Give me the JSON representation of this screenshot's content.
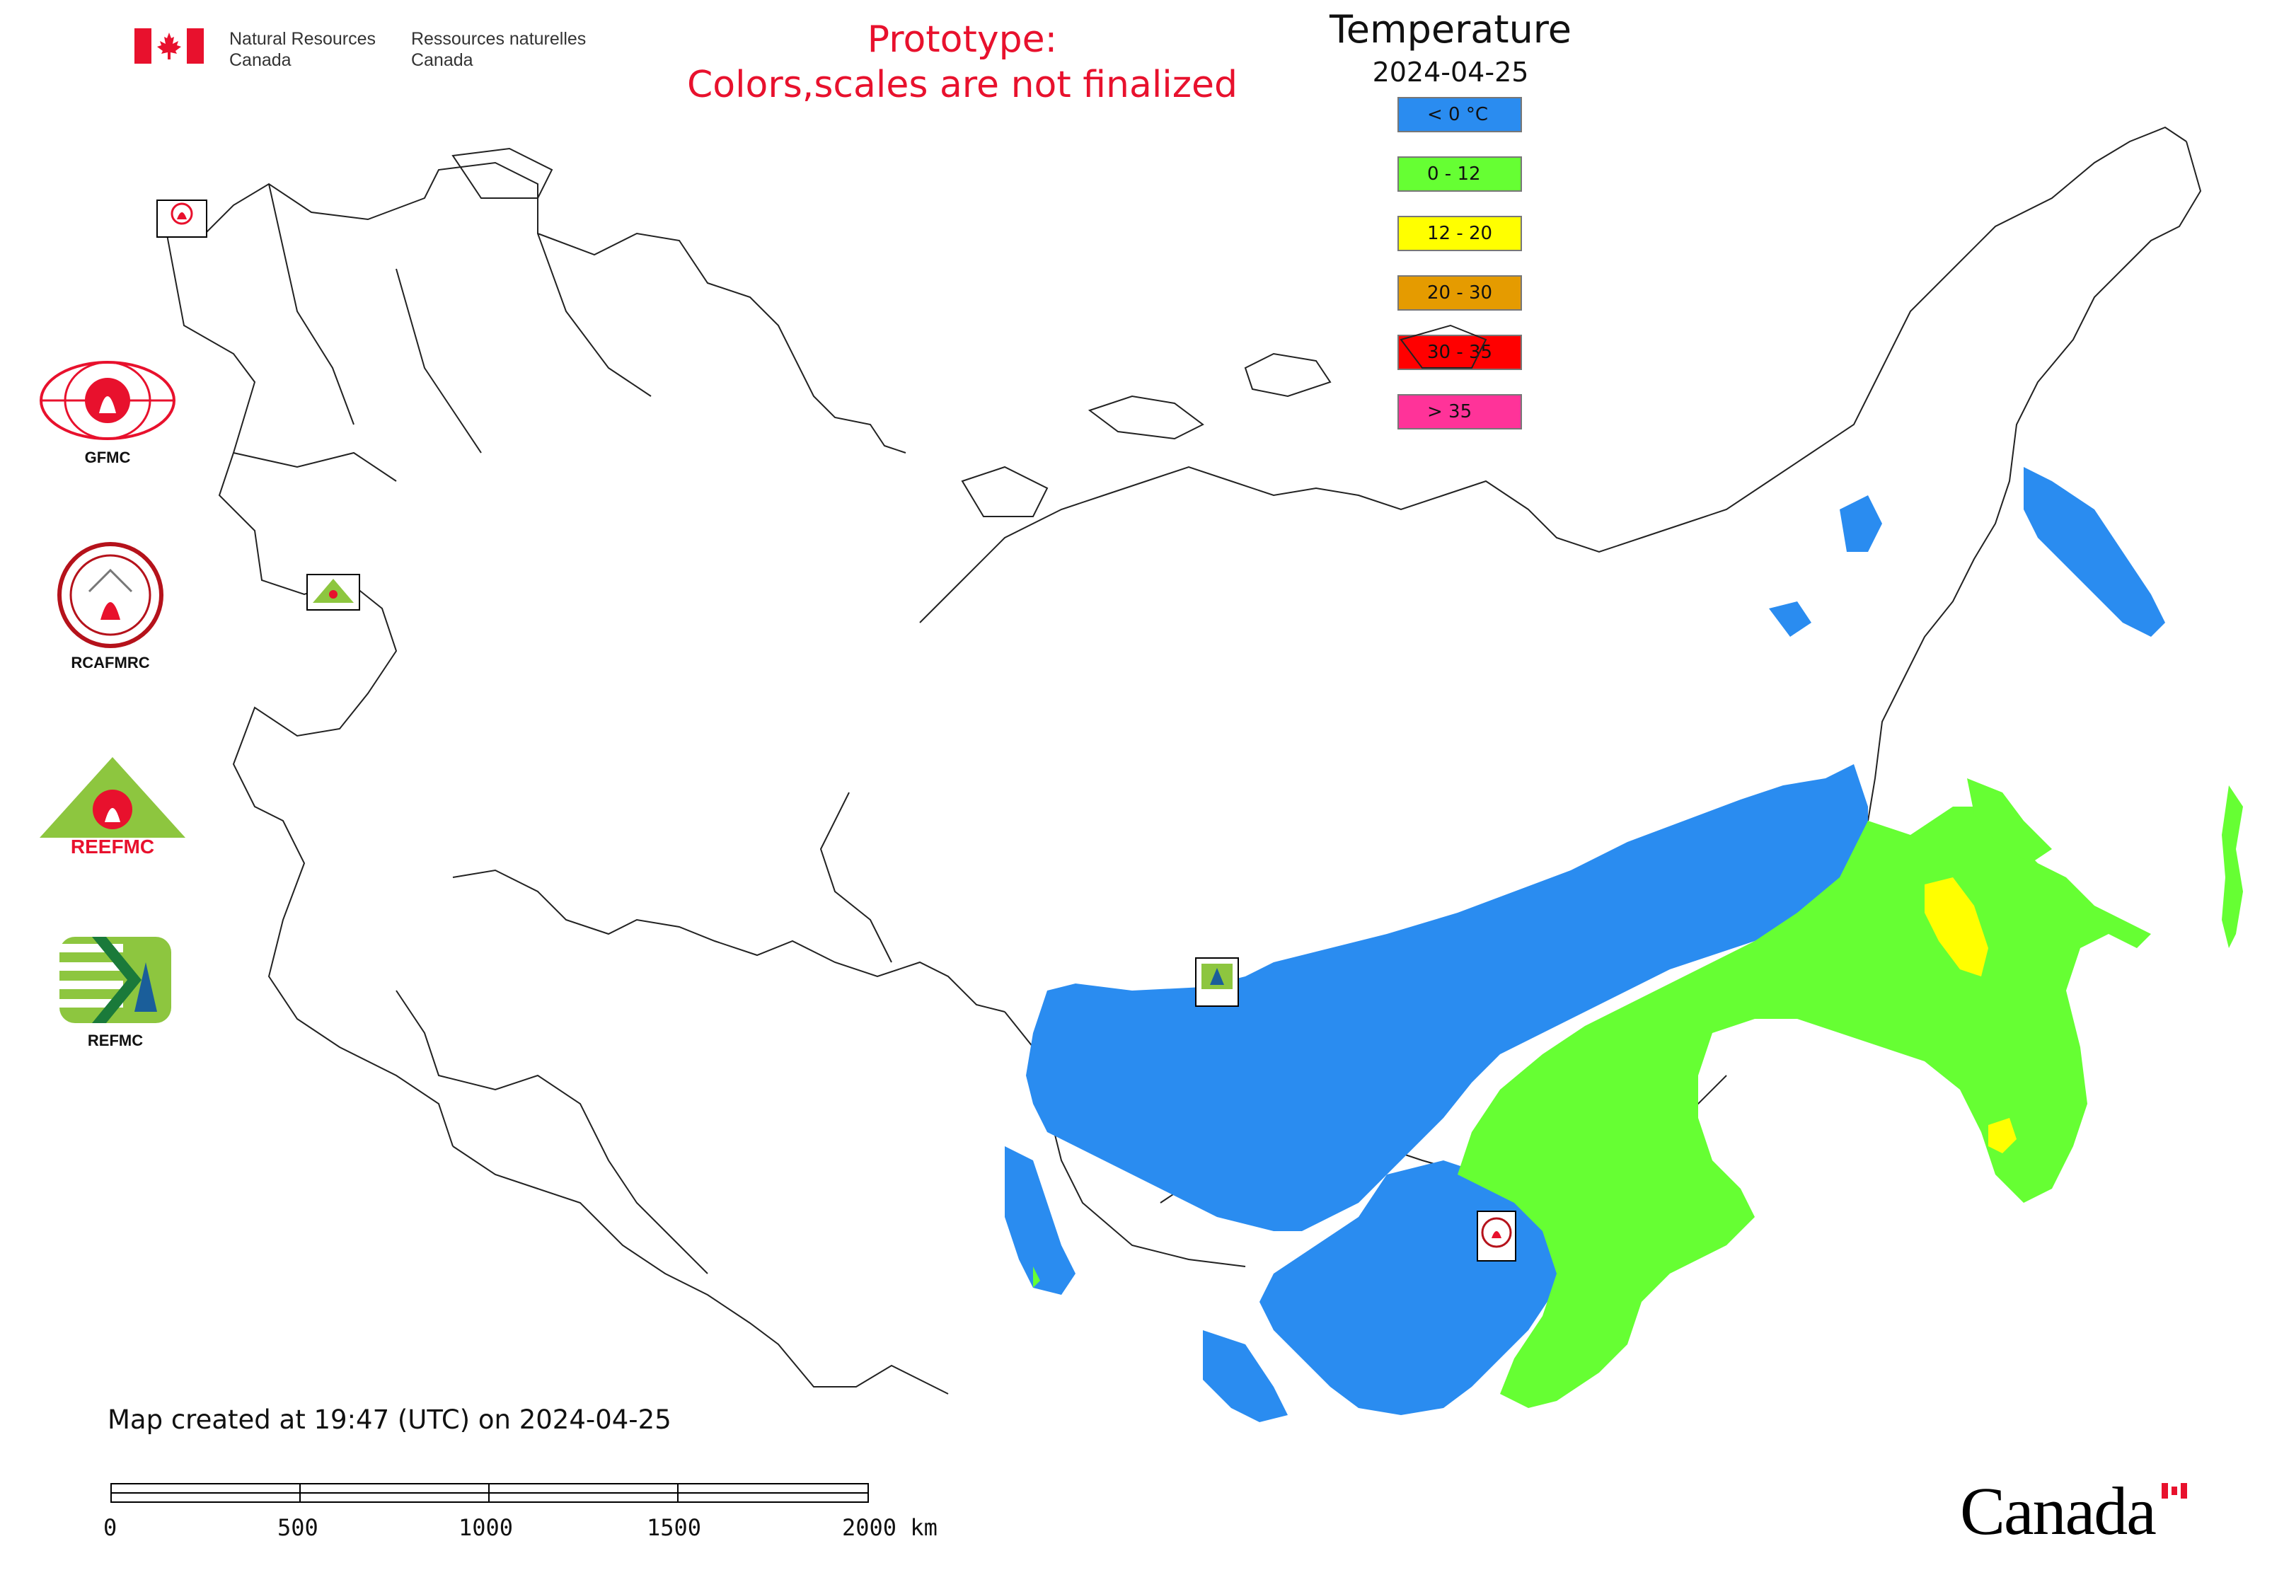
{
  "header": {
    "org_en_line1": "Natural Resources",
    "org_en_line2": "Canada",
    "org_fr_line1": "Ressources naturelles",
    "org_fr_line2": "Canada"
  },
  "notice": {
    "line1": "Prototype:",
    "line2": "Colors,scales are not finalized",
    "color": "#e8112d"
  },
  "legend": {
    "title": "Temperature",
    "date": "2024-04-25",
    "items": [
      {
        "label": "< 0 °C",
        "color": "#2a8cf0"
      },
      {
        "label": "0 - 12",
        "color": "#66ff33"
      },
      {
        "label": "12 - 20",
        "color": "#ffff00"
      },
      {
        "label": "20 - 30",
        "color": "#e59b00"
      },
      {
        "label": "30 - 35",
        "color": "#ff0000"
      },
      {
        "label": "> 35",
        "color": "#ff3399"
      }
    ]
  },
  "logos": [
    {
      "name": "GFMC",
      "label": "GFMC"
    },
    {
      "name": "RCAFMRC",
      "label": "RCAFMRC"
    },
    {
      "name": "REEFMC",
      "label": "REEFMC"
    },
    {
      "name": "REFMC",
      "label": "REFMC"
    }
  ],
  "map_markers": [
    {
      "name": "gfmc-marker",
      "label": "GFMC"
    },
    {
      "name": "reefmc-marker",
      "label": "REEFMC"
    },
    {
      "name": "refmc-marker",
      "label": "REFMC"
    },
    {
      "name": "rcafmrc-marker",
      "label": "RCAFMRC"
    }
  ],
  "footer": {
    "created": "Map created at 19:47 (UTC) on 2024-04-25",
    "scale_labels": [
      "0",
      "500",
      "1000",
      "1500",
      "2000 km"
    ]
  },
  "wordmark": "Canada"
}
